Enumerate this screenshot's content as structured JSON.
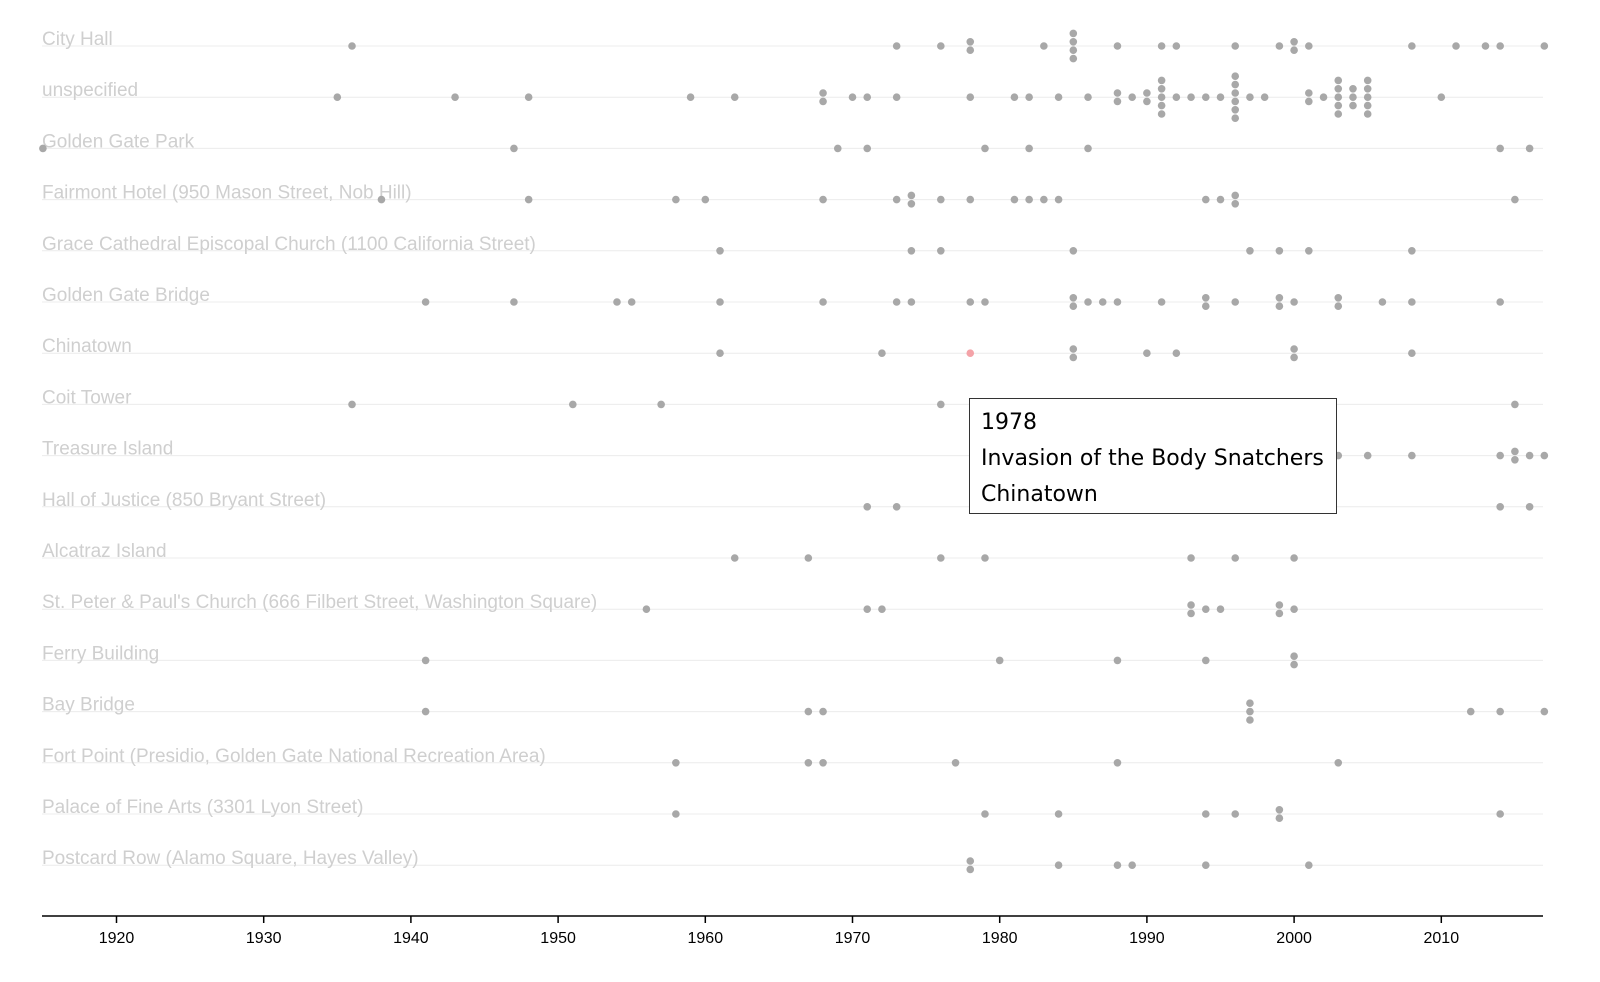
{
  "chart_data": {
    "type": "scatter",
    "xlabel": "",
    "ylabel": "",
    "xlim": [
      1915,
      2017
    ],
    "x_ticks": [
      "1920",
      "1930",
      "1940",
      "1950",
      "1960",
      "1970",
      "1980",
      "1990",
      "2000",
      "2010"
    ],
    "categories": [
      "City Hall",
      "unspecified",
      "Golden Gate Park",
      "Fairmont Hotel (950 Mason Street, Nob Hill)",
      "Grace Cathedral Episcopal Church (1100 California Street)",
      "Golden Gate Bridge",
      "Chinatown",
      "Coit Tower",
      "Treasure Island",
      "Hall of Justice (850 Bryant Street)",
      "Alcatraz Island",
      "St. Peter & Paul's Church (666 Filbert Street, Washington Square)",
      "Ferry Building",
      "Bay Bridge",
      "Fort Point (Presidio, Golden Gate National Recreation Area)",
      "Palace of Fine Arts (3301 Lyon Street)",
      "Postcard Row (Alamo Square, Hayes Valley)"
    ],
    "points": [
      [
        0,
        1936
      ],
      [
        0,
        1973
      ],
      [
        0,
        1976
      ],
      [
        0,
        1978
      ],
      [
        0,
        1978
      ],
      [
        0,
        1983
      ],
      [
        0,
        1985
      ],
      [
        0,
        1985
      ],
      [
        0,
        1985
      ],
      [
        0,
        1985
      ],
      [
        0,
        1988
      ],
      [
        0,
        1991
      ],
      [
        0,
        1992
      ],
      [
        0,
        1996
      ],
      [
        0,
        1999
      ],
      [
        0,
        2000
      ],
      [
        0,
        2000
      ],
      [
        0,
        2001
      ],
      [
        0,
        2008
      ],
      [
        0,
        2011
      ],
      [
        0,
        2013
      ],
      [
        0,
        2014
      ],
      [
        0,
        2017
      ],
      [
        1,
        1935
      ],
      [
        1,
        1943
      ],
      [
        1,
        1948
      ],
      [
        1,
        1959
      ],
      [
        1,
        1962
      ],
      [
        1,
        1968
      ],
      [
        1,
        1968
      ],
      [
        1,
        1970
      ],
      [
        1,
        1971
      ],
      [
        1,
        1973
      ],
      [
        1,
        1978
      ],
      [
        1,
        1981
      ],
      [
        1,
        1982
      ],
      [
        1,
        1984
      ],
      [
        1,
        1986
      ],
      [
        1,
        1988
      ],
      [
        1,
        1988
      ],
      [
        1,
        1989
      ],
      [
        1,
        1990
      ],
      [
        1,
        1990
      ],
      [
        1,
        1991
      ],
      [
        1,
        1991
      ],
      [
        1,
        1991
      ],
      [
        1,
        1991
      ],
      [
        1,
        1991
      ],
      [
        1,
        1992
      ],
      [
        1,
        1993
      ],
      [
        1,
        1994
      ],
      [
        1,
        1995
      ],
      [
        1,
        1996
      ],
      [
        1,
        1996
      ],
      [
        1,
        1996
      ],
      [
        1,
        1996
      ],
      [
        1,
        1996
      ],
      [
        1,
        1996
      ],
      [
        1,
        1997
      ],
      [
        1,
        1998
      ],
      [
        1,
        2001
      ],
      [
        1,
        2001
      ],
      [
        1,
        2002
      ],
      [
        1,
        2003
      ],
      [
        1,
        2003
      ],
      [
        1,
        2003
      ],
      [
        1,
        2003
      ],
      [
        1,
        2003
      ],
      [
        1,
        2004
      ],
      [
        1,
        2004
      ],
      [
        1,
        2004
      ],
      [
        1,
        2005
      ],
      [
        1,
        2005
      ],
      [
        1,
        2005
      ],
      [
        1,
        2005
      ],
      [
        1,
        2005
      ],
      [
        1,
        2010
      ],
      [
        2,
        1915
      ],
      [
        2,
        1947
      ],
      [
        2,
        1969
      ],
      [
        2,
        1971
      ],
      [
        2,
        1979
      ],
      [
        2,
        1982
      ],
      [
        2,
        1986
      ],
      [
        2,
        2014
      ],
      [
        2,
        2016
      ],
      [
        3,
        1938
      ],
      [
        3,
        1948
      ],
      [
        3,
        1958
      ],
      [
        3,
        1960
      ],
      [
        3,
        1968
      ],
      [
        3,
        1973
      ],
      [
        3,
        1974
      ],
      [
        3,
        1974
      ],
      [
        3,
        1976
      ],
      [
        3,
        1978
      ],
      [
        3,
        1981
      ],
      [
        3,
        1982
      ],
      [
        3,
        1983
      ],
      [
        3,
        1984
      ],
      [
        3,
        1994
      ],
      [
        3,
        1995
      ],
      [
        3,
        1996
      ],
      [
        3,
        1996
      ],
      [
        3,
        2015
      ],
      [
        4,
        1961
      ],
      [
        4,
        1974
      ],
      [
        4,
        1976
      ],
      [
        4,
        1985
      ],
      [
        4,
        1997
      ],
      [
        4,
        1999
      ],
      [
        4,
        2001
      ],
      [
        4,
        2008
      ],
      [
        5,
        1941
      ],
      [
        5,
        1947
      ],
      [
        5,
        1954
      ],
      [
        5,
        1955
      ],
      [
        5,
        1961
      ],
      [
        5,
        1968
      ],
      [
        5,
        1973
      ],
      [
        5,
        1974
      ],
      [
        5,
        1978
      ],
      [
        5,
        1979
      ],
      [
        5,
        1985
      ],
      [
        5,
        1985
      ],
      [
        5,
        1986
      ],
      [
        5,
        1987
      ],
      [
        5,
        1988
      ],
      [
        5,
        1991
      ],
      [
        5,
        1994
      ],
      [
        5,
        1994
      ],
      [
        5,
        1996
      ],
      [
        5,
        1999
      ],
      [
        5,
        1999
      ],
      [
        5,
        2000
      ],
      [
        5,
        2003
      ],
      [
        5,
        2003
      ],
      [
        5,
        2006
      ],
      [
        5,
        2008
      ],
      [
        5,
        2014
      ],
      [
        6,
        1961
      ],
      [
        6,
        1972
      ],
      [
        6,
        1978
      ],
      [
        6,
        1985
      ],
      [
        6,
        1985
      ],
      [
        6,
        1990
      ],
      [
        6,
        1992
      ],
      [
        6,
        2000
      ],
      [
        6,
        2000
      ],
      [
        6,
        2008
      ],
      [
        7,
        1936
      ],
      [
        7,
        1951
      ],
      [
        7,
        1957
      ],
      [
        7,
        1976
      ],
      [
        7,
        2015
      ],
      [
        8,
        2003
      ],
      [
        8,
        2005
      ],
      [
        8,
        2008
      ],
      [
        8,
        2014
      ],
      [
        8,
        2015
      ],
      [
        8,
        2015
      ],
      [
        8,
        2016
      ],
      [
        8,
        2017
      ],
      [
        9,
        1971
      ],
      [
        9,
        1973
      ],
      [
        9,
        2014
      ],
      [
        9,
        2016
      ],
      [
        10,
        1962
      ],
      [
        10,
        1967
      ],
      [
        10,
        1976
      ],
      [
        10,
        1979
      ],
      [
        10,
        1993
      ],
      [
        10,
        1996
      ],
      [
        10,
        2000
      ],
      [
        11,
        1956
      ],
      [
        11,
        1971
      ],
      [
        11,
        1972
      ],
      [
        11,
        1993
      ],
      [
        11,
        1993
      ],
      [
        11,
        1994
      ],
      [
        11,
        1995
      ],
      [
        11,
        1999
      ],
      [
        11,
        1999
      ],
      [
        11,
        2000
      ],
      [
        12,
        1941
      ],
      [
        12,
        1980
      ],
      [
        12,
        1988
      ],
      [
        12,
        1994
      ],
      [
        12,
        2000
      ],
      [
        12,
        2000
      ],
      [
        13,
        1941
      ],
      [
        13,
        1967
      ],
      [
        13,
        1968
      ],
      [
        13,
        1997
      ],
      [
        13,
        1997
      ],
      [
        13,
        1997
      ],
      [
        13,
        2012
      ],
      [
        13,
        2014
      ],
      [
        13,
        2017
      ],
      [
        14,
        1958
      ],
      [
        14,
        1967
      ],
      [
        14,
        1968
      ],
      [
        14,
        1977
      ],
      [
        14,
        1988
      ],
      [
        14,
        2003
      ],
      [
        15,
        1958
      ],
      [
        15,
        1979
      ],
      [
        15,
        1984
      ],
      [
        15,
        1994
      ],
      [
        15,
        1996
      ],
      [
        15,
        1999
      ],
      [
        15,
        1999
      ],
      [
        15,
        2014
      ],
      [
        16,
        1978
      ],
      [
        16,
        1978
      ],
      [
        16,
        1984
      ],
      [
        16,
        1988
      ],
      [
        16,
        1989
      ],
      [
        16,
        1994
      ],
      [
        16,
        2001
      ]
    ],
    "highlight": {
      "row": 6,
      "x": 1978
    },
    "tooltip": {
      "year": "1978",
      "title": "Invasion of the Body Snatchers",
      "location": "Chinatown"
    },
    "grid": false,
    "colors": {
      "dot": "#a8a8a8",
      "highlight": "#f4a3a8",
      "label": "#cfcfcf"
    }
  }
}
